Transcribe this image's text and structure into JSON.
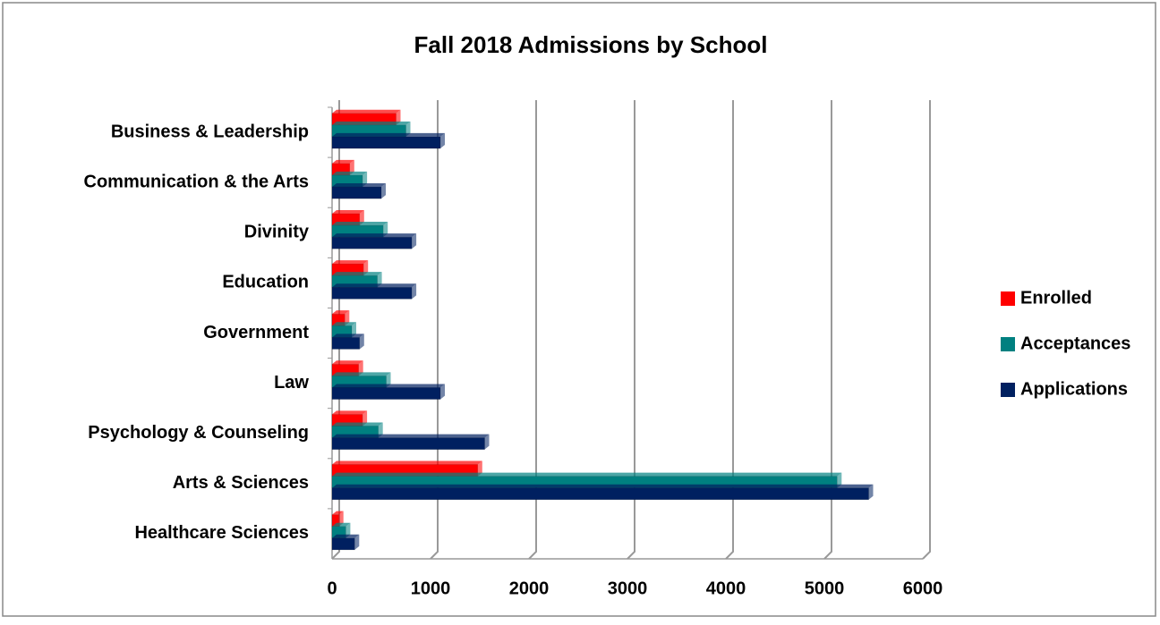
{
  "chart_data": {
    "type": "bar",
    "orientation": "horizontal",
    "title": "Fall 2018 Admissions by School",
    "categories": [
      "Business & Leadership",
      "Communication & the Arts",
      "Divinity",
      "Education",
      "Government",
      "Law",
      "Psychology & Counseling",
      "Arts & Sciences",
      "Healthcare Sciences"
    ],
    "series": [
      {
        "name": "Enrolled",
        "color": "#ff0000",
        "values": [
          650,
          180,
          280,
          320,
          130,
          270,
          310,
          1480,
          70
        ]
      },
      {
        "name": "Acceptances",
        "color": "#008080",
        "values": [
          750,
          310,
          520,
          460,
          200,
          550,
          470,
          5130,
          140
        ]
      },
      {
        "name": "Applications",
        "color": "#002060",
        "values": [
          1100,
          500,
          810,
          810,
          280,
          1100,
          1550,
          5450,
          230
        ]
      }
    ],
    "xlim": [
      0,
      6000
    ],
    "xticks": [
      0,
      1000,
      2000,
      3000,
      4000,
      5000,
      6000
    ],
    "grid": true,
    "legend": "right"
  }
}
